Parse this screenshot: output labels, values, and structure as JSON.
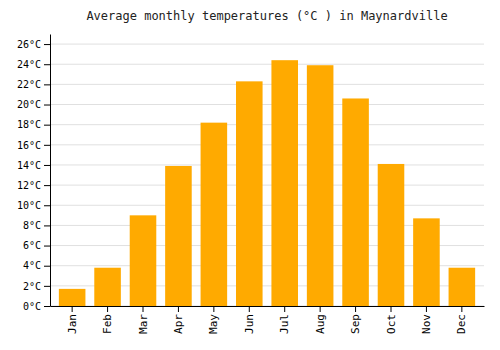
{
  "chart_data": {
    "type": "bar",
    "title": "Average monthly temperatures (°C ) in Maynardville",
    "categories": [
      "Jan",
      "Feb",
      "Mar",
      "Apr",
      "May",
      "Jun",
      "Jul",
      "Aug",
      "Sep",
      "Oct",
      "Nov",
      "Dec"
    ],
    "values": [
      1.7,
      3.8,
      9.0,
      13.9,
      18.2,
      22.3,
      24.4,
      23.9,
      20.6,
      14.1,
      8.7,
      3.8
    ],
    "color": "#FFAA00",
    "ylim": [
      0,
      27
    ],
    "yticks": [
      {
        "value": 0,
        "label": "0°C"
      },
      {
        "value": 2,
        "label": "2°C"
      },
      {
        "value": 4,
        "label": "4°C"
      },
      {
        "value": 6,
        "label": "6°C"
      },
      {
        "value": 8,
        "label": "8°C"
      },
      {
        "value": 10,
        "label": "10°C"
      },
      {
        "value": 12,
        "label": "12°C"
      },
      {
        "value": 14,
        "label": "14°C"
      },
      {
        "value": 16,
        "label": "16°C"
      },
      {
        "value": 18,
        "label": "18°C"
      },
      {
        "value": 20,
        "label": "20°C"
      },
      {
        "value": 22,
        "label": "22°C"
      },
      {
        "value": 24,
        "label": "24°C"
      },
      {
        "value": 26,
        "label": "26°C"
      }
    ],
    "grid": true
  }
}
